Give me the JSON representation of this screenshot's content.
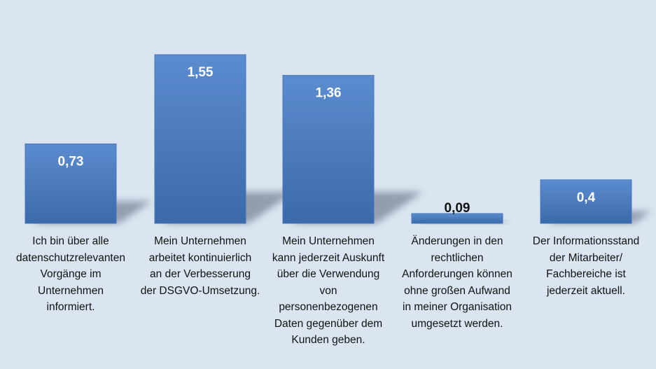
{
  "chart_data": {
    "type": "bar",
    "categories": [
      "Ich bin über alle datenschutzrelevanten Vorgänge im Unternehmen informiert.",
      "Mein Unternehmen arbeitet kontinuierlich an der Verbesserung der DSGVO-Umsetzung.",
      "Mein Unternehmen kann jederzeit Auskunft über die Verwendung von personenbezogenen Daten gegenüber dem Kunden geben.",
      "Änderungen in den rechtlichen Anforderungen können ohne großen Aufwand in meiner Organisation umgesetzt werden.",
      "Der Informationsstand der Mitarbeiter/ Fachbereiche ist jederzeit aktuell."
    ],
    "category_lines": [
      [
        "Ich bin über alle",
        "datenschutzrelevanten",
        "Vorgänge im",
        "Unternehmen",
        "informiert."
      ],
      [
        "Mein Unternehmen",
        "arbeitet kontinuierlich",
        "an der Verbesserung",
        "der DSGVO-Umsetzung."
      ],
      [
        "Mein Unternehmen",
        "kann jederzeit Auskunft",
        "über die Verwendung",
        "von",
        "personenbezogenen",
        "Daten gegenüber dem",
        "Kunden geben."
      ],
      [
        "Änderungen in den",
        "rechtlichen",
        "Anforderungen können",
        "ohne großen Aufwand",
        "in meiner Organisation",
        "umgesetzt werden."
      ],
      [
        "Der Informationsstand",
        "der Mitarbeiter/",
        "Fachbereiche ist",
        "jederzeit aktuell."
      ]
    ],
    "values": [
      0.73,
      1.55,
      1.36,
      0.09,
      0.4
    ],
    "data_labels": [
      "0,73",
      "1,55",
      "1,36",
      "0,09",
      "0,4"
    ],
    "ylim": [
      0,
      1.75
    ],
    "grid": false,
    "title": "",
    "xlabel": "",
    "ylabel": "",
    "colors": {
      "bar_top": "#5b8ccf",
      "bar_bottom": "#3b6aab",
      "label_inside": "#ffffff",
      "label_outside": "#111111",
      "background": "#dbe5f1"
    }
  }
}
